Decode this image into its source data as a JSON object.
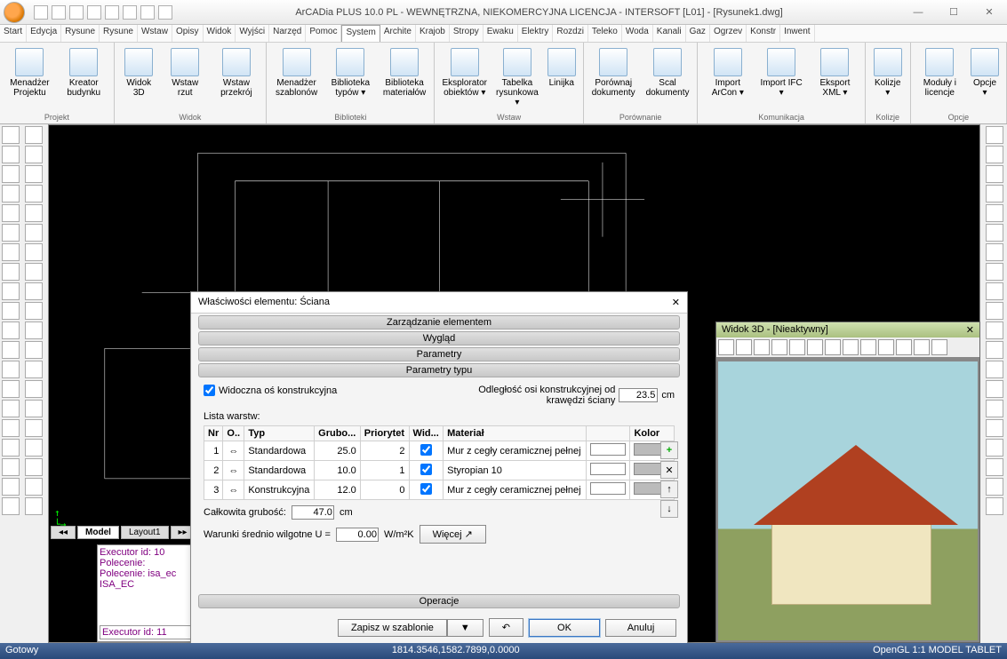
{
  "window": {
    "title": "ArCADia PLUS 10.0 PL - WEWNĘTRZNA, NIEKOMERCYJNA LICENCJA - INTERSOFT [L01] - [Rysunek1.dwg]"
  },
  "menubar": [
    "Start",
    "Edycja",
    "Rysune",
    "Rysune",
    "Wstaw",
    "Opisy",
    "Widok",
    "Wyjści",
    "Narzęd",
    "Pomoc",
    "System",
    "Archite",
    "Krajob",
    "Stropy",
    "Ewaku",
    "Elektry",
    "Rozdzi",
    "Teleko",
    "Woda",
    "Kanali",
    "Gaz",
    "Ogrzev",
    "Konstr",
    "Inwent"
  ],
  "menubar_active_index": 10,
  "ribbon": {
    "groups": [
      {
        "name": "Projekt",
        "buttons": [
          "Menadżer Projektu",
          "Kreator budynku"
        ]
      },
      {
        "name": "Widok",
        "buttons": [
          "Widok 3D",
          "Wstaw rzut",
          "Wstaw przekrój"
        ]
      },
      {
        "name": "Biblioteki",
        "buttons": [
          "Menadżer szablonów",
          "Biblioteka typów ▾",
          "Biblioteka materiałów"
        ]
      },
      {
        "name": "Wstaw",
        "buttons": [
          "Eksplorator obiektów ▾",
          "Tabelka rysunkowa ▾",
          "Linijka"
        ]
      },
      {
        "name": "Porównanie",
        "buttons": [
          "Porównaj dokumenty",
          "Scal dokumenty"
        ]
      },
      {
        "name": "Komunikacja",
        "buttons": [
          "Import ArCon ▾",
          "Import IFC ▾",
          "Eksport XML ▾"
        ]
      },
      {
        "name": "Kolizje",
        "buttons": [
          "Kolizje ▾"
        ]
      },
      {
        "name": "Opcje",
        "buttons": [
          "Moduły i licencje",
          "Opcje ▾"
        ]
      }
    ]
  },
  "tabs": {
    "model": "Model",
    "layout": "Layout1"
  },
  "command": {
    "lines": [
      "Executor id: 10",
      "Polecenie:",
      "Polecenie: isa_ec",
      "ISA_EC"
    ],
    "input": "Executor id: 11"
  },
  "view3d": {
    "title": "Widok 3D - [Nieaktywny]"
  },
  "dialog": {
    "title": "Właściwości elementu: Ściana",
    "sections": [
      "Zarządzanie elementem",
      "Wygląd",
      "Parametry",
      "Parametry typu"
    ],
    "visible_axis_label": "Widoczna oś konstrukcyjna",
    "offset_label": "Odległość osi konstrukcyjnej od krawędzi ściany",
    "offset_value": "23.5",
    "offset_unit": "cm",
    "layers_label": "Lista warstw:",
    "columns": [
      "Nr",
      "O..",
      "Typ",
      "Grubo...",
      "Priorytet",
      "Wid...",
      "Materiał",
      "",
      "Kolor"
    ],
    "rows": [
      {
        "nr": "1",
        "o": "⇔",
        "typ": "Standardowa",
        "grub": "25.0",
        "prio": "2",
        "wid": true,
        "mat": "Mur z cegły ceramicznej pełnej"
      },
      {
        "nr": "2",
        "o": "⇔",
        "typ": "Standardowa",
        "grub": "10.0",
        "prio": "1",
        "wid": true,
        "mat": "Styropian 10"
      },
      {
        "nr": "3",
        "o": "⇔",
        "typ": "Konstrukcyjna",
        "grub": "12.0",
        "prio": "0",
        "wid": true,
        "mat": "Mur z cegły ceramicznej pełnej"
      }
    ],
    "total_label": "Całkowita grubość:",
    "total_value": "47.0",
    "total_unit": "cm",
    "u_label": "Warunki średnio wilgotne U =",
    "u_value": "0.00",
    "u_unit_html": "W/m²K",
    "more": "Więcej",
    "operations": "Operacje",
    "save_tpl": "Zapisz w szablonie",
    "ok": "OK",
    "cancel": "Anuluj"
  },
  "status": {
    "left": "Gotowy",
    "coords": "1814.3546,1582.7899,0.0000",
    "right": "OpenGL  1:1   MODEL  TABLET"
  }
}
